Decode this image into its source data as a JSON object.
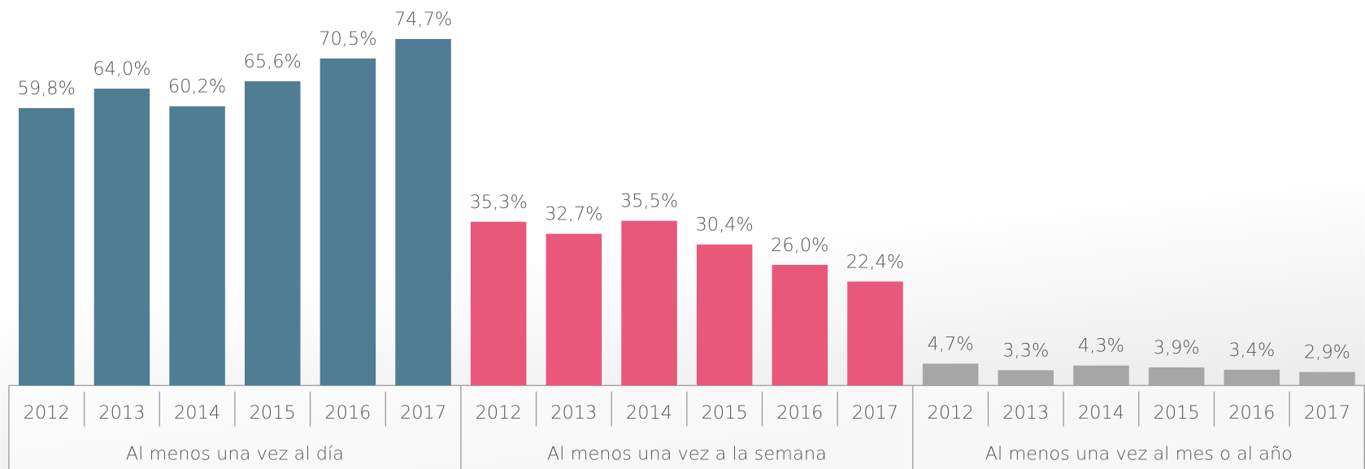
{
  "chart_data": {
    "type": "bar",
    "categories": [
      "2012",
      "2013",
      "2014",
      "2015",
      "2016",
      "2017"
    ],
    "series": [
      {
        "name": "Al menos una vez al día",
        "color": "#4f7d93",
        "values": [
          59.8,
          64.0,
          60.2,
          65.6,
          70.5,
          74.7
        ],
        "value_labels": [
          "59,8%",
          "64,0%",
          "60,2%",
          "65,6%",
          "70,5%",
          "74,7%"
        ]
      },
      {
        "name": "Al menos una vez a la semana",
        "color": "#e9577a",
        "values": [
          35.3,
          32.7,
          35.5,
          30.4,
          26.0,
          22.4
        ],
        "value_labels": [
          "35,3%",
          "32,7%",
          "35,5%",
          "30,4%",
          "26,0%",
          "22,4%"
        ]
      },
      {
        "name": "Al menos una vez al mes o al año",
        "color": "#a6a6a6",
        "values": [
          4.7,
          3.3,
          4.3,
          3.9,
          3.4,
          2.9
        ],
        "value_labels": [
          "4,7%",
          "3,3%",
          "4,3%",
          "3,9%",
          "3,4%",
          "2,9%"
        ]
      }
    ]
  }
}
